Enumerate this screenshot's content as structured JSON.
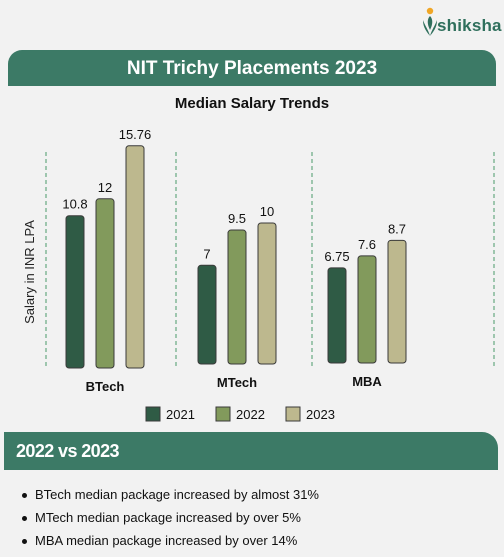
{
  "brand": {
    "name": "shiksha"
  },
  "header": {
    "title": "NIT Trichy Placements 2023"
  },
  "colors": {
    "accent": "#3c7a66",
    "series": [
      "#2f5b45",
      "#829a5c",
      "#bdb88e"
    ]
  },
  "chart_data": {
    "type": "bar",
    "title": "Median Salary Trends",
    "ylabel": "Salary in INR LPA",
    "xlabel": "",
    "categories": [
      "BTech",
      "MTech",
      "MBA"
    ],
    "series": [
      {
        "name": "2021",
        "values": [
          10.8,
          7,
          6.75
        ],
        "labels": [
          "10.8",
          "7",
          "6.75"
        ]
      },
      {
        "name": "2022",
        "values": [
          12,
          9.5,
          7.6
        ],
        "labels": [
          "12",
          "9.5",
          "7.6"
        ]
      },
      {
        "name": "2023",
        "values": [
          15.76,
          10,
          8.7
        ],
        "labels": [
          "15.76",
          "10",
          "8.7"
        ]
      }
    ],
    "legend": "bottom",
    "grid": false
  },
  "comparison": {
    "title": "2022 vs 2023",
    "points": [
      "BTech median package increased by almost 31%",
      "MTech median package increased by over 5%",
      "MBA median package increased by over 14%"
    ]
  }
}
